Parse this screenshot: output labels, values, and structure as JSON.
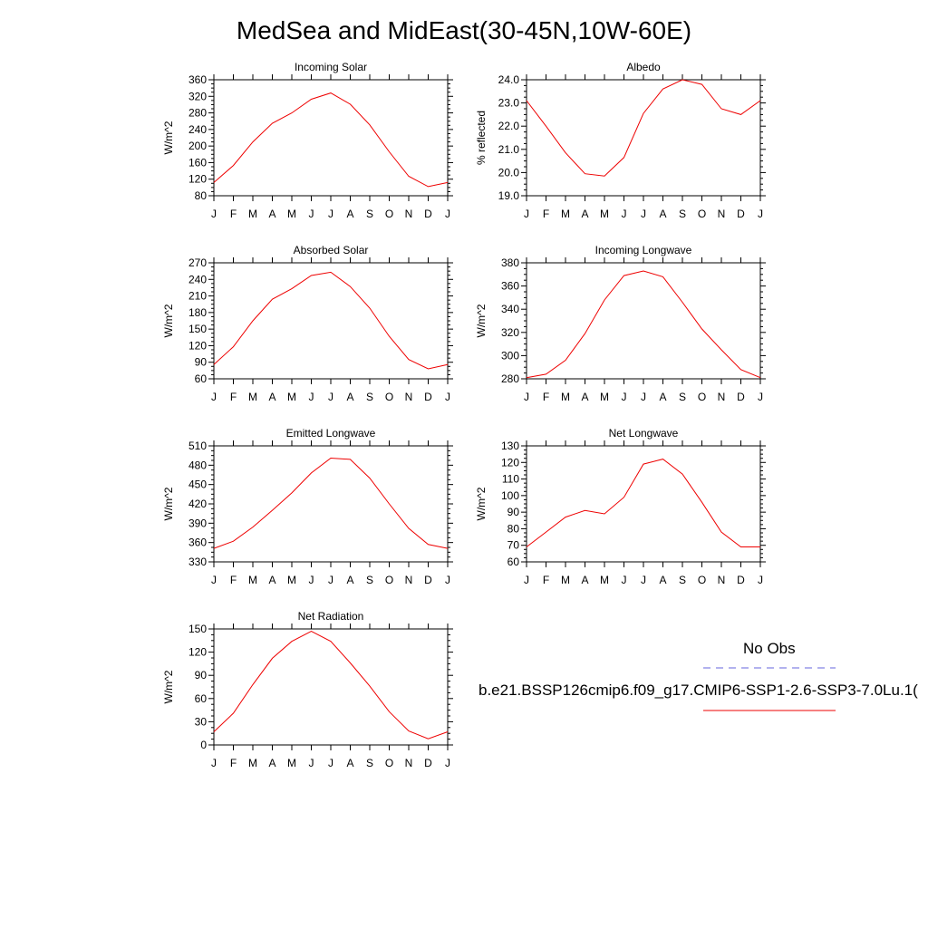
{
  "title": "MedSea and MidEast(30-45N,10W-60E)",
  "legend": {
    "obs_label": "No Obs",
    "obs_color": "#6666dd",
    "model_label": "b.e21.BSSP126cmip6.f09_g17.CMIP6-SSP1-2.6-SSP3-7.0Lu.1(",
    "model_color": "#ee0000"
  },
  "chart_data": [
    {
      "type": "line",
      "title": "Incoming Solar",
      "ylabel": "W/m^2",
      "x": [
        "J",
        "F",
        "M",
        "A",
        "M",
        "J",
        "J",
        "A",
        "S",
        "O",
        "N",
        "D",
        "J"
      ],
      "ylim": [
        80,
        360
      ],
      "yticks": [
        80,
        120,
        160,
        200,
        240,
        280,
        320,
        360
      ],
      "ytick_labels": [
        "80",
        "120",
        "160",
        "200",
        "240",
        "280",
        "320",
        "360"
      ],
      "series": [
        {
          "values": [
            112,
            153,
            210,
            255,
            280,
            313,
            328,
            301,
            251,
            186,
            127,
            102,
            112
          ]
        }
      ]
    },
    {
      "type": "line",
      "title": "Albedo",
      "ylabel": "% reflected",
      "x": [
        "J",
        "F",
        "M",
        "A",
        "M",
        "J",
        "J",
        "A",
        "S",
        "O",
        "N",
        "D",
        "J"
      ],
      "ylim": [
        19.0,
        24.0
      ],
      "yticks": [
        19,
        20,
        21,
        22,
        23,
        24
      ],
      "ytick_labels": [
        "19.0",
        "20.0",
        "21.0",
        "22.0",
        "23.0",
        "24.0"
      ],
      "series": [
        {
          "values": [
            23.1,
            22.0,
            20.85,
            19.95,
            19.85,
            20.65,
            22.55,
            23.6,
            24.0,
            23.8,
            22.75,
            22.5,
            23.1
          ]
        }
      ]
    },
    {
      "type": "line",
      "title": "Absorbed Solar",
      "ylabel": "W/m^2",
      "x": [
        "J",
        "F",
        "M",
        "A",
        "M",
        "J",
        "J",
        "A",
        "S",
        "O",
        "N",
        "D",
        "J"
      ],
      "ylim": [
        60,
        270
      ],
      "yticks": [
        60,
        90,
        120,
        150,
        180,
        210,
        240,
        270
      ],
      "ytick_labels": [
        "60",
        "90",
        "120",
        "150",
        "180",
        "210",
        "240",
        "270"
      ],
      "series": [
        {
          "values": [
            86,
            118,
            165,
            204,
            223,
            247,
            253,
            227,
            188,
            137,
            95,
            78,
            86
          ]
        }
      ]
    },
    {
      "type": "line",
      "title": "Incoming Longwave",
      "ylabel": "W/m^2",
      "x": [
        "J",
        "F",
        "M",
        "A",
        "M",
        "J",
        "J",
        "A",
        "S",
        "O",
        "N",
        "D",
        "J"
      ],
      "ylim": [
        280,
        380
      ],
      "yticks": [
        280,
        300,
        320,
        340,
        360,
        380
      ],
      "ytick_labels": [
        "280",
        "300",
        "320",
        "340",
        "360",
        "380"
      ],
      "series": [
        {
          "values": [
            281,
            284,
            296,
            319,
            348,
            369,
            373,
            368,
            346,
            323,
            305,
            288,
            281
          ]
        }
      ]
    },
    {
      "type": "line",
      "title": "Emitted Longwave",
      "ylabel": "W/m^2",
      "x": [
        "J",
        "F",
        "M",
        "A",
        "M",
        "J",
        "J",
        "A",
        "S",
        "O",
        "N",
        "D",
        "J"
      ],
      "ylim": [
        330,
        510
      ],
      "yticks": [
        330,
        360,
        390,
        420,
        450,
        480,
        510
      ],
      "ytick_labels": [
        "330",
        "360",
        "390",
        "420",
        "450",
        "480",
        "510"
      ],
      "series": [
        {
          "values": [
            351,
            362,
            384,
            410,
            437,
            468,
            491,
            489,
            460,
            420,
            382,
            357,
            351
          ]
        }
      ]
    },
    {
      "type": "line",
      "title": "Net Longwave",
      "ylabel": "W/m^2",
      "x": [
        "J",
        "F",
        "M",
        "A",
        "M",
        "J",
        "J",
        "A",
        "S",
        "O",
        "N",
        "D",
        "J"
      ],
      "ylim": [
        60,
        130
      ],
      "yticks": [
        60,
        70,
        80,
        90,
        100,
        110,
        120,
        130
      ],
      "ytick_labels": [
        "60",
        "70",
        "80",
        "90",
        "100",
        "110",
        "120",
        "130"
      ],
      "series": [
        {
          "values": [
            69,
            78,
            87,
            91,
            89,
            99,
            119,
            122,
            113,
            96,
            78,
            69,
            69
          ]
        }
      ]
    },
    {
      "type": "line",
      "title": "Net Radiation",
      "ylabel": "W/m^2",
      "x": [
        "J",
        "F",
        "M",
        "A",
        "M",
        "J",
        "J",
        "A",
        "S",
        "O",
        "N",
        "D",
        "J"
      ],
      "ylim": [
        0,
        150
      ],
      "yticks": [
        0,
        30,
        60,
        90,
        120,
        150
      ],
      "ytick_labels": [
        "0",
        "30",
        "60",
        "90",
        "120",
        "150"
      ],
      "series": [
        {
          "values": [
            17,
            41,
            78,
            112,
            134,
            147,
            134,
            106,
            76,
            43,
            18,
            8,
            17
          ]
        }
      ]
    }
  ]
}
